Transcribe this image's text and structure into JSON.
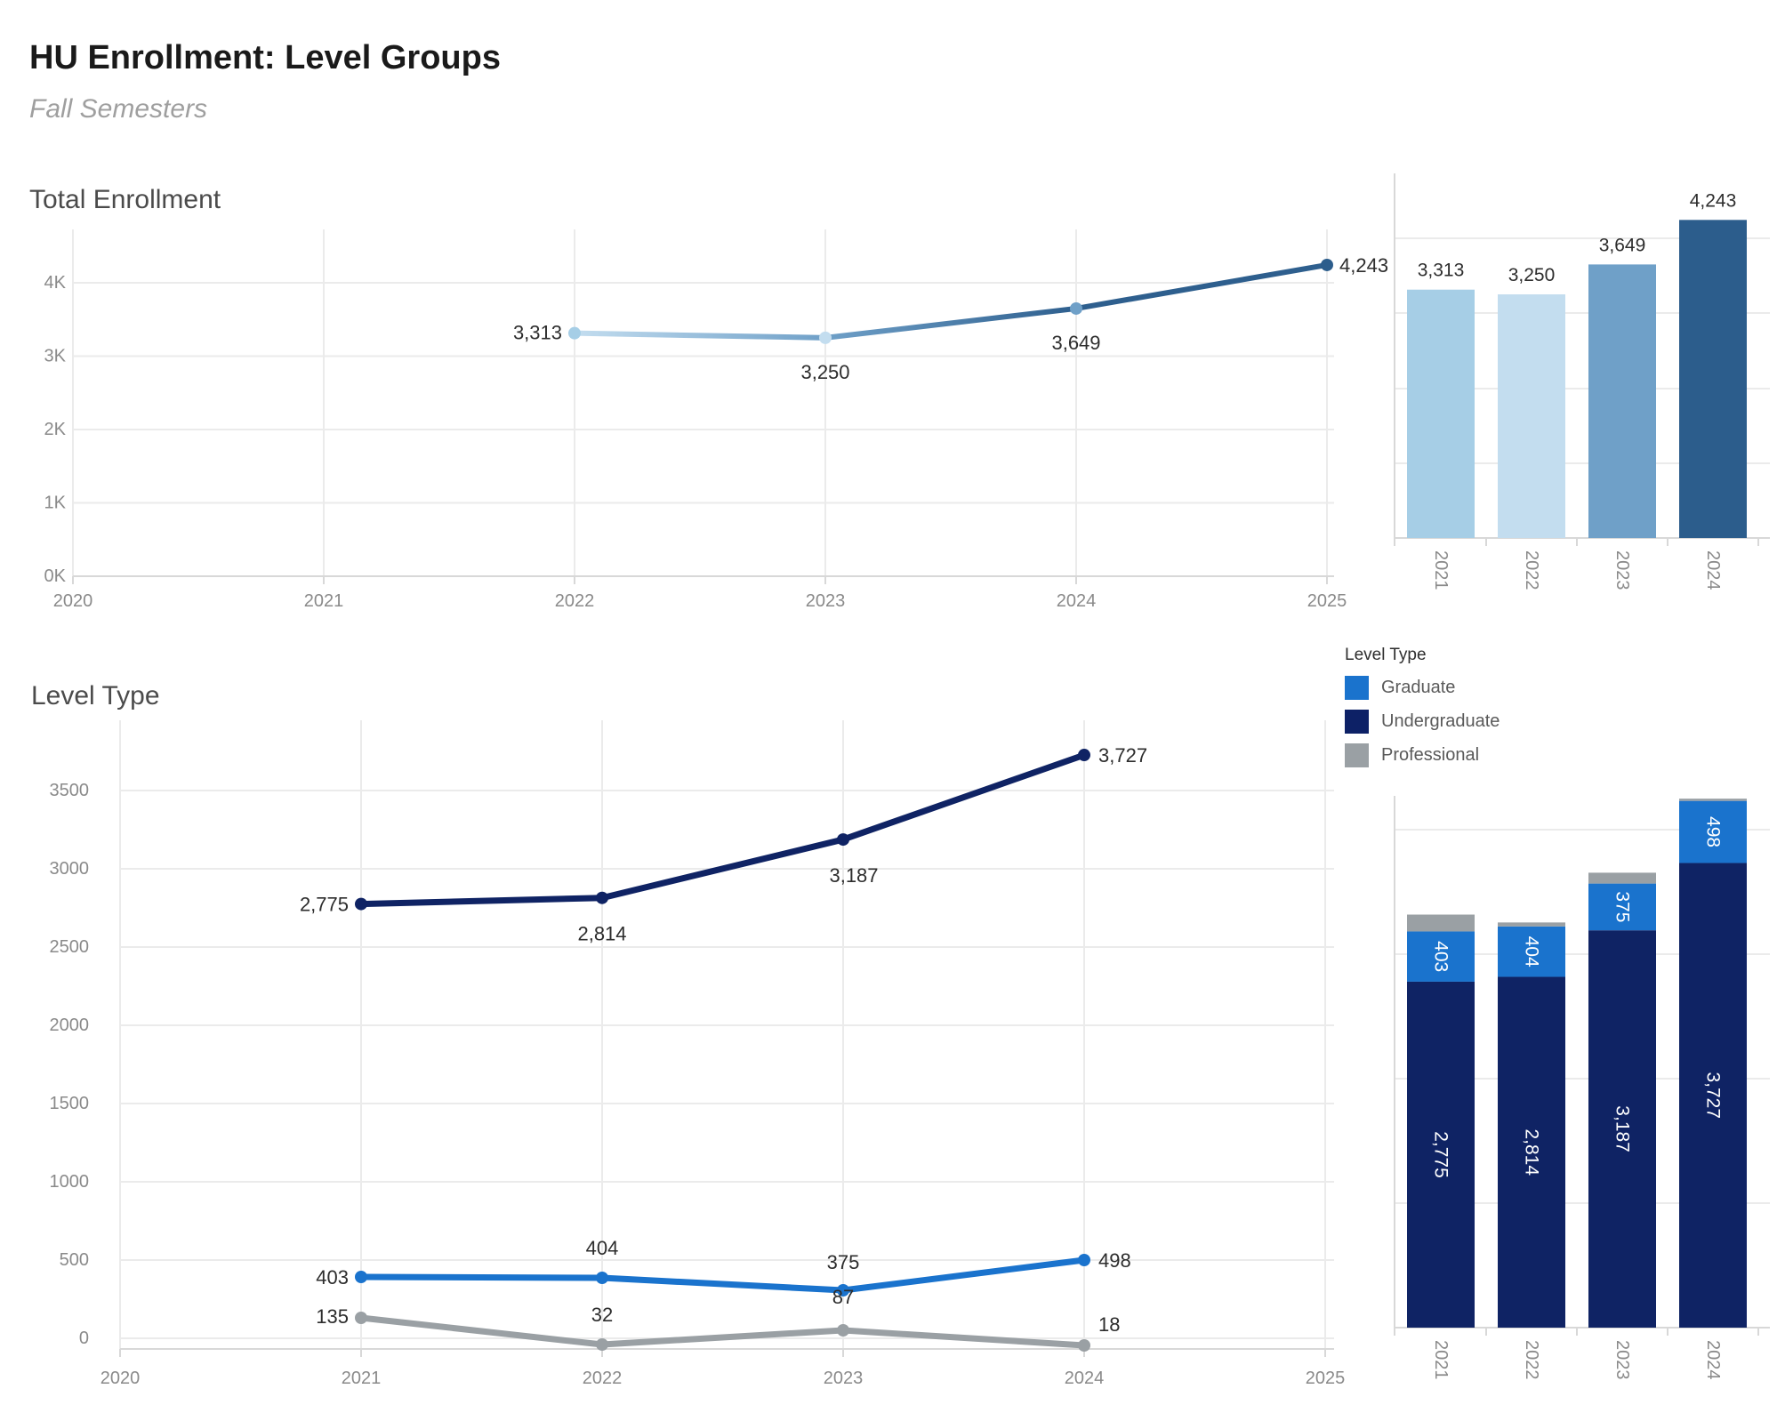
{
  "header": {
    "title": "HU Enrollment: Level Groups",
    "subtitle": "Fall Semesters"
  },
  "sections": {
    "total": "Total Enrollment",
    "level": "Level Type"
  },
  "legend": {
    "title": "Level Type",
    "items": [
      {
        "label": "Graduate",
        "color": "#1a73cd"
      },
      {
        "label": "Undergraduate",
        "color": "#0d2166"
      },
      {
        "label": "Professional",
        "color": "#9aa0a4"
      }
    ]
  },
  "colors": {
    "grid": "#ebebeb",
    "axis": "#d8d8d8",
    "tick_label": "#8a8a8a",
    "data_label": "#2d2d2d",
    "bar_label_inside": "#ffffff",
    "year_2021": "#a6cee6",
    "year_2022": "#c3ddef",
    "year_2023": "#6fa0c8",
    "year_2024": "#2c5d8c",
    "graduate": "#1a73cd",
    "undergraduate": "#0f2364",
    "professional": "#9aa0a4"
  },
  "chart_data": [
    {
      "id": "total-line",
      "type": "line",
      "title": "Total Enrollment",
      "x": [
        2021,
        2022,
        2023,
        2024
      ],
      "values": [
        3313,
        3250,
        3649,
        4243
      ],
      "value_labels": [
        "3,313",
        "3,250",
        "3,649",
        "4,243"
      ],
      "x_ticks": [
        "2020",
        "2021",
        "2022",
        "2023",
        "2024",
        "2025"
      ],
      "y_ticks": [
        "0K",
        "1K",
        "2K",
        "3K",
        "4K"
      ],
      "ylim": [
        0,
        4700
      ],
      "grid": true,
      "point_colors": [
        "#a6cee6",
        "#c3ddef",
        "#6fa0c8",
        "#2c5d8c"
      ],
      "gradient_stops": [
        "#a6cee6",
        "#c3ddef",
        "#6fa0c8",
        "#2e5f8e"
      ]
    },
    {
      "id": "total-bars",
      "type": "bar",
      "categories": [
        "2021",
        "2022",
        "2023",
        "2024"
      ],
      "values": [
        3313,
        3250,
        3649,
        4243
      ],
      "value_labels": [
        "3,313",
        "3,250",
        "3,649",
        "4,243"
      ],
      "bar_colors": [
        "#a6cee6",
        "#c3ddef",
        "#6fa0c8",
        "#2c5d8c"
      ],
      "ylim": [
        0,
        4850
      ],
      "grid": true
    },
    {
      "id": "level-lines",
      "type": "line",
      "title": "Level Type",
      "x": [
        2021,
        2022,
        2023,
        2024
      ],
      "x_ticks": [
        "2020",
        "2021",
        "2022",
        "2023",
        "2024",
        "2025"
      ],
      "y_ticks": [
        "0",
        "500",
        "1000",
        "1500",
        "2000",
        "2500",
        "3000",
        "3500"
      ],
      "ylim": [
        0,
        4000
      ],
      "grid": true,
      "legend_position": "right",
      "series": [
        {
          "name": "Undergraduate",
          "color": "#0f2364",
          "values": [
            2775,
            2814,
            3187,
            3727
          ],
          "value_labels": [
            "2,775",
            "2,814",
            "3,187",
            "3,727"
          ]
        },
        {
          "name": "Graduate",
          "color": "#1a73cd",
          "values": [
            403,
            404,
            375,
            498
          ],
          "value_labels": [
            "403",
            "404",
            "375",
            "498"
          ]
        },
        {
          "name": "Professional",
          "color": "#9aa0a4",
          "values": [
            135,
            32,
            87,
            18
          ],
          "value_labels": [
            "135",
            "32",
            "87",
            "18"
          ]
        }
      ]
    },
    {
      "id": "level-stacked",
      "type": "bar",
      "stacked": true,
      "categories": [
        "2021",
        "2022",
        "2023",
        "2024"
      ],
      "ylim": [
        0,
        4300
      ],
      "grid": true,
      "series": [
        {
          "name": "Undergraduate",
          "color": "#0f2364",
          "values": [
            2775,
            2814,
            3187,
            3727
          ],
          "segment_labels": [
            "2,775",
            "2,814",
            "3,187",
            "3,727"
          ]
        },
        {
          "name": "Graduate",
          "color": "#1a73cd",
          "values": [
            403,
            404,
            375,
            498
          ],
          "segment_labels": [
            "403",
            "404",
            "375",
            "498"
          ]
        },
        {
          "name": "Professional",
          "color": "#9aa0a4",
          "values": [
            135,
            32,
            87,
            18
          ],
          "segment_labels": [
            null,
            null,
            null,
            null
          ]
        }
      ]
    }
  ]
}
